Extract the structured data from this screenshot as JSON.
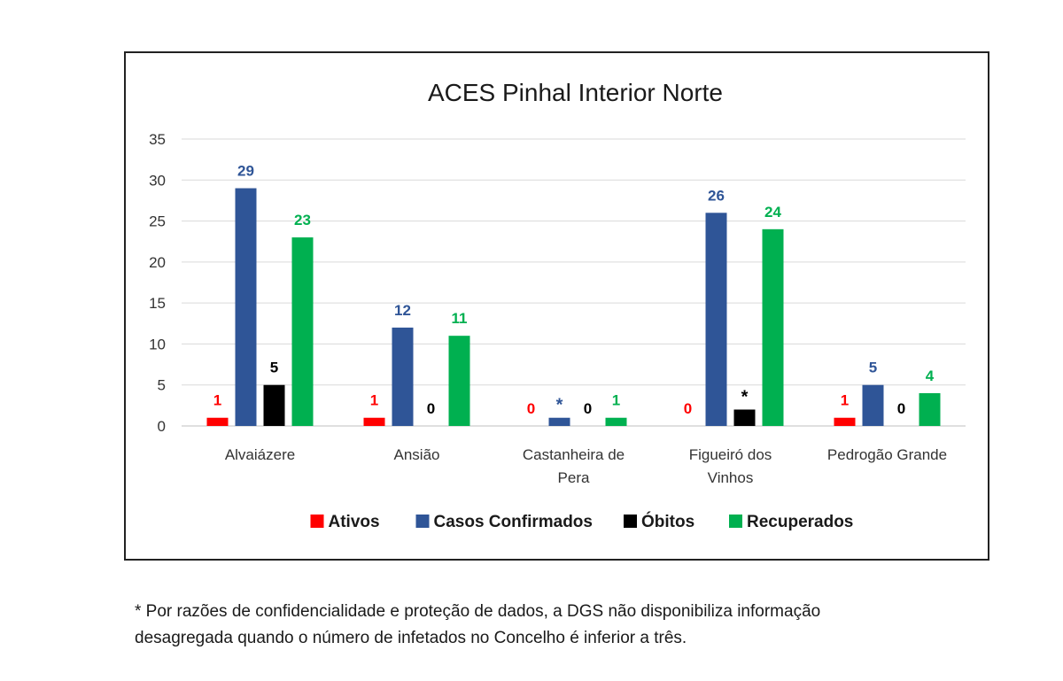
{
  "chart_data": {
    "type": "bar",
    "title": "ACES Pinhal Interior Norte",
    "xlabel": "",
    "ylabel": "",
    "ylim": [
      0,
      35
    ],
    "yticks": [
      0,
      5,
      10,
      15,
      20,
      25,
      30,
      35
    ],
    "grid": true,
    "legend_position": "bottom",
    "categories": [
      [
        "Alvaiázere"
      ],
      [
        "Ansião"
      ],
      [
        "Castanheira de",
        "Pera"
      ],
      [
        "Figueiró dos",
        "Vinhos"
      ],
      [
        "Pedrogão Grande"
      ]
    ],
    "series": [
      {
        "name": "Ativos",
        "color": "#ff0000",
        "values": [
          1,
          1,
          0,
          0,
          1
        ],
        "labels": [
          "1",
          "1",
          "0",
          "0",
          "1"
        ]
      },
      {
        "name": "Casos Confirmados",
        "color": "#2f5597",
        "values": [
          29,
          12,
          1,
          26,
          5
        ],
        "labels": [
          "29",
          "12",
          "*",
          "26",
          "5"
        ]
      },
      {
        "name": "Óbitos",
        "color": "#000000",
        "values": [
          5,
          0,
          0,
          2,
          0
        ],
        "labels": [
          "5",
          "0",
          "0",
          "*",
          "0"
        ]
      },
      {
        "name": "Recuperados",
        "color": "#00b050",
        "values": [
          23,
          11,
          1,
          24,
          4
        ],
        "labels": [
          "23",
          "11",
          "1",
          "24",
          "4"
        ]
      }
    ]
  },
  "footnote": {
    "line1": "* Por razões de confidencialidade e proteção de dados, a DGS não disponibiliza informação",
    "line2": "desagregada quando o número de infetados no Concelho é inferior a três."
  }
}
